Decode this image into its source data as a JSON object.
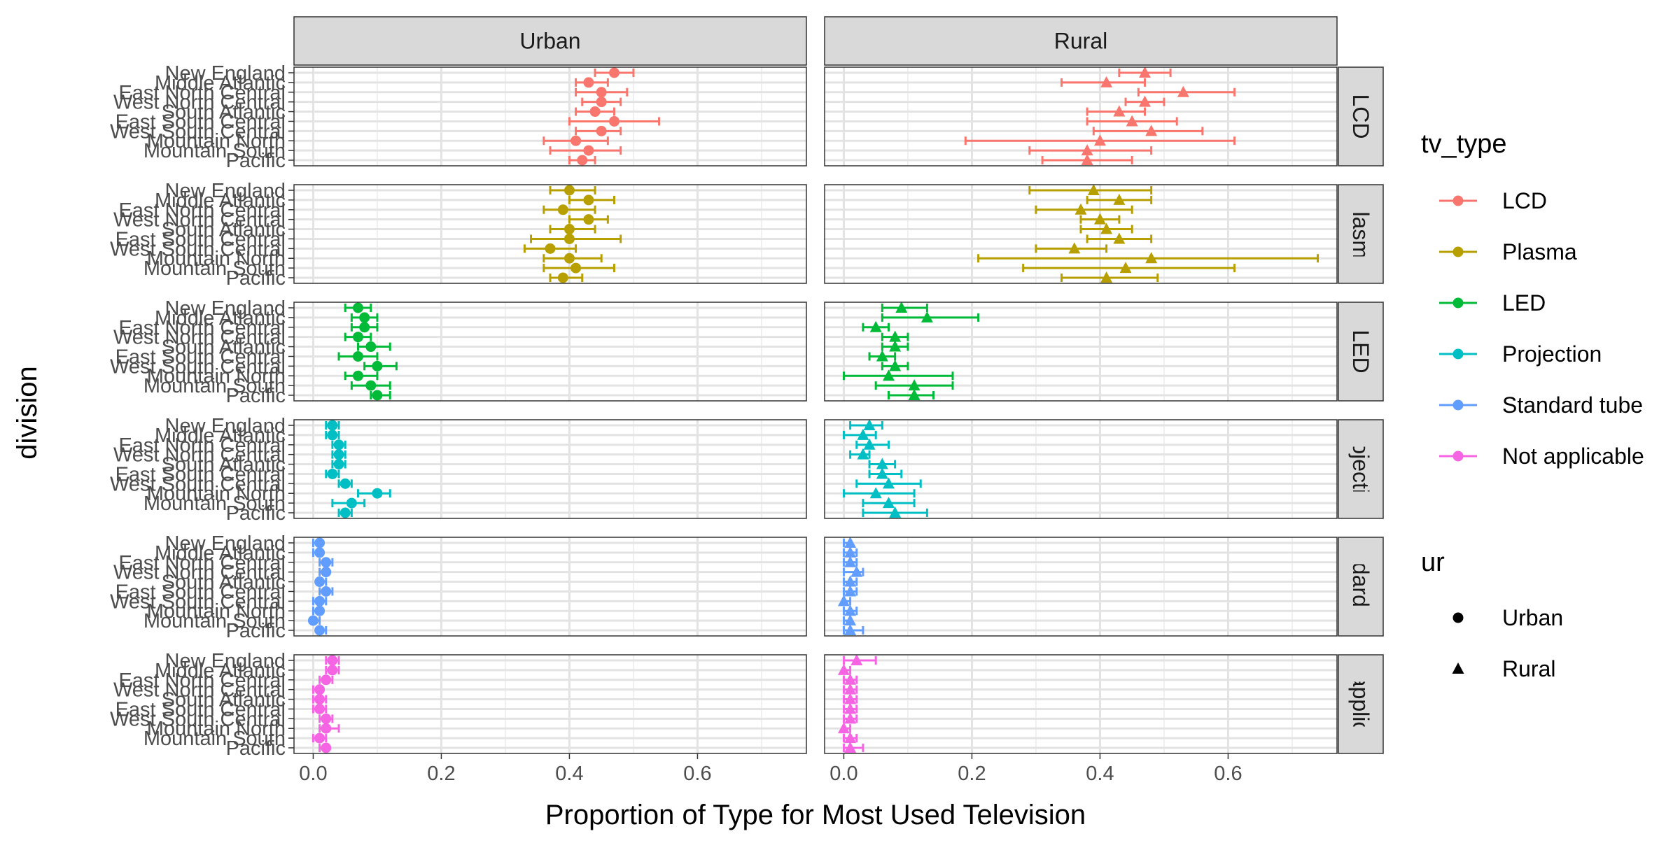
{
  "chart_data": {
    "type": "scatter",
    "xlabel": "Proportion of Type for Most Used Television",
    "ylabel": "division",
    "xlim": [
      -0.03,
      0.77
    ],
    "xticks": [
      0.0,
      0.2,
      0.4,
      0.6
    ],
    "xtick_labels": [
      "0.0",
      "0.2",
      "0.4",
      "0.6"
    ],
    "grid": true,
    "legend_placement": "right",
    "columns": [
      "Urban",
      "Rural"
    ],
    "rows": [
      "LCD",
      "Plasma",
      "LED",
      "Projection",
      "Standard tube",
      "Not applicable"
    ],
    "divisions": [
      "Pacific",
      "Mountain South",
      "Mountain North",
      "West South Central",
      "East South Central",
      "South Atlantic",
      "West North Central",
      "East North Central",
      "Middle Atlantic",
      "New England"
    ],
    "legend": {
      "tv_type": {
        "title": "tv_type",
        "entries": [
          "LCD",
          "Plasma",
          "LED",
          "Projection",
          "Standard tube",
          "Not applicable"
        ],
        "colors": [
          "#F8766D",
          "#B79F00",
          "#00BA38",
          "#00BFC4",
          "#619CFF",
          "#F564E3"
        ]
      },
      "ur": {
        "title": "ur",
        "entries": [
          "Urban",
          "Rural"
        ],
        "shapes": [
          "circle",
          "triangle"
        ]
      }
    },
    "series": [
      {
        "panel": "LCD / Urban",
        "row": "LCD",
        "column": "Urban",
        "estimate": [
          0.42,
          0.43,
          0.41,
          0.45,
          0.47,
          0.44,
          0.45,
          0.45,
          0.43,
          0.47
        ],
        "lower": [
          0.4,
          0.37,
          0.36,
          0.41,
          0.4,
          0.41,
          0.42,
          0.41,
          0.41,
          0.44
        ],
        "upper": [
          0.44,
          0.48,
          0.46,
          0.48,
          0.54,
          0.47,
          0.48,
          0.49,
          0.46,
          0.5
        ]
      },
      {
        "panel": "LCD / Rural",
        "row": "LCD",
        "column": "Rural",
        "estimate": [
          0.38,
          0.38,
          0.4,
          0.48,
          0.45,
          0.43,
          0.47,
          0.53,
          0.41,
          0.47
        ],
        "lower": [
          0.31,
          0.29,
          0.19,
          0.39,
          0.38,
          0.38,
          0.44,
          0.46,
          0.34,
          0.43
        ],
        "upper": [
          0.45,
          0.48,
          0.61,
          0.56,
          0.52,
          0.47,
          0.5,
          0.61,
          0.47,
          0.51
        ]
      },
      {
        "panel": "Plasma / Urban",
        "row": "Plasma",
        "column": "Urban",
        "estimate": [
          0.39,
          0.41,
          0.4,
          0.37,
          0.4,
          0.4,
          0.43,
          0.39,
          0.43,
          0.4
        ],
        "lower": [
          0.37,
          0.36,
          0.36,
          0.33,
          0.34,
          0.37,
          0.4,
          0.36,
          0.4,
          0.37
        ],
        "upper": [
          0.42,
          0.47,
          0.45,
          0.41,
          0.48,
          0.44,
          0.46,
          0.44,
          0.47,
          0.44
        ]
      },
      {
        "panel": "Plasma / Rural",
        "row": "Plasma",
        "column": "Rural",
        "estimate": [
          0.41,
          0.44,
          0.48,
          0.36,
          0.43,
          0.41,
          0.4,
          0.37,
          0.43,
          0.39
        ],
        "lower": [
          0.34,
          0.28,
          0.21,
          0.3,
          0.38,
          0.37,
          0.37,
          0.3,
          0.38,
          0.29
        ],
        "upper": [
          0.49,
          0.61,
          0.74,
          0.41,
          0.48,
          0.45,
          0.43,
          0.45,
          0.48,
          0.48
        ]
      },
      {
        "panel": "LED / Urban",
        "row": "LED",
        "column": "Urban",
        "estimate": [
          0.1,
          0.09,
          0.07,
          0.1,
          0.07,
          0.09,
          0.07,
          0.08,
          0.08,
          0.07
        ],
        "lower": [
          0.09,
          0.06,
          0.05,
          0.08,
          0.04,
          0.07,
          0.05,
          0.06,
          0.06,
          0.05
        ],
        "upper": [
          0.12,
          0.12,
          0.1,
          0.13,
          0.1,
          0.12,
          0.09,
          0.1,
          0.1,
          0.09
        ]
      },
      {
        "panel": "LED / Rural",
        "row": "LED",
        "column": "Rural",
        "estimate": [
          0.11,
          0.11,
          0.07,
          0.08,
          0.06,
          0.08,
          0.08,
          0.05,
          0.13,
          0.09
        ],
        "lower": [
          0.07,
          0.05,
          0.0,
          0.06,
          0.04,
          0.06,
          0.06,
          0.03,
          0.06,
          0.06
        ],
        "upper": [
          0.14,
          0.17,
          0.17,
          0.1,
          0.08,
          0.1,
          0.1,
          0.07,
          0.21,
          0.13
        ]
      },
      {
        "panel": "Projection / Urban",
        "row": "Projection",
        "column": "Urban",
        "estimate": [
          0.05,
          0.06,
          0.1,
          0.05,
          0.03,
          0.04,
          0.04,
          0.04,
          0.03,
          0.03
        ],
        "lower": [
          0.04,
          0.03,
          0.07,
          0.04,
          0.02,
          0.03,
          0.03,
          0.03,
          0.02,
          0.02
        ],
        "upper": [
          0.06,
          0.08,
          0.12,
          0.06,
          0.04,
          0.05,
          0.05,
          0.05,
          0.04,
          0.04
        ]
      },
      {
        "panel": "Projection / Rural",
        "row": "Projection",
        "column": "Rural",
        "estimate": [
          0.08,
          0.07,
          0.05,
          0.07,
          0.06,
          0.06,
          0.03,
          0.04,
          0.03,
          0.04
        ],
        "lower": [
          0.03,
          0.03,
          0.0,
          0.02,
          0.04,
          0.04,
          0.01,
          0.02,
          0.0,
          0.01
        ],
        "upper": [
          0.13,
          0.11,
          0.11,
          0.12,
          0.09,
          0.08,
          0.04,
          0.07,
          0.05,
          0.06
        ]
      },
      {
        "panel": "Standard tube / Urban",
        "row": "Standard tube",
        "column": "Urban",
        "estimate": [
          0.01,
          0.0,
          0.01,
          0.01,
          0.02,
          0.01,
          0.02,
          0.02,
          0.01,
          0.01
        ],
        "lower": [
          0.01,
          0.0,
          0.0,
          0.0,
          0.01,
          0.01,
          0.01,
          0.01,
          0.0,
          0.0
        ],
        "upper": [
          0.02,
          0.01,
          0.01,
          0.02,
          0.03,
          0.02,
          0.02,
          0.03,
          0.01,
          0.01
        ]
      },
      {
        "panel": "Standard tube / Rural",
        "row": "Standard tube",
        "column": "Rural",
        "estimate": [
          0.01,
          0.01,
          0.01,
          0.0,
          0.01,
          0.01,
          0.02,
          0.01,
          0.01,
          0.01
        ],
        "lower": [
          0.0,
          0.0,
          0.0,
          0.0,
          0.0,
          0.0,
          0.0,
          0.0,
          0.0,
          0.0
        ],
        "upper": [
          0.03,
          0.01,
          0.02,
          0.01,
          0.02,
          0.02,
          0.03,
          0.02,
          0.02,
          0.01
        ]
      },
      {
        "panel": "Not applicable / Urban",
        "row": "Not applicable",
        "column": "Urban",
        "estimate": [
          0.02,
          0.01,
          0.02,
          0.02,
          0.01,
          0.01,
          0.01,
          0.02,
          0.03,
          0.03
        ],
        "lower": [
          0.01,
          0.0,
          0.01,
          0.01,
          0.0,
          0.0,
          0.0,
          0.01,
          0.02,
          0.02
        ],
        "upper": [
          0.02,
          0.02,
          0.04,
          0.03,
          0.02,
          0.02,
          0.01,
          0.03,
          0.04,
          0.04
        ]
      },
      {
        "panel": "Not applicable / Rural",
        "row": "Not applicable",
        "column": "Rural",
        "estimate": [
          0.01,
          0.01,
          0.0,
          0.01,
          0.01,
          0.01,
          0.01,
          0.01,
          0.0,
          0.02
        ],
        "lower": [
          0.0,
          0.0,
          0.0,
          0.0,
          0.0,
          0.0,
          0.0,
          0.0,
          0.0,
          0.0
        ],
        "upper": [
          0.03,
          0.02,
          0.01,
          0.02,
          0.02,
          0.02,
          0.02,
          0.02,
          0.01,
          0.05
        ]
      }
    ]
  }
}
